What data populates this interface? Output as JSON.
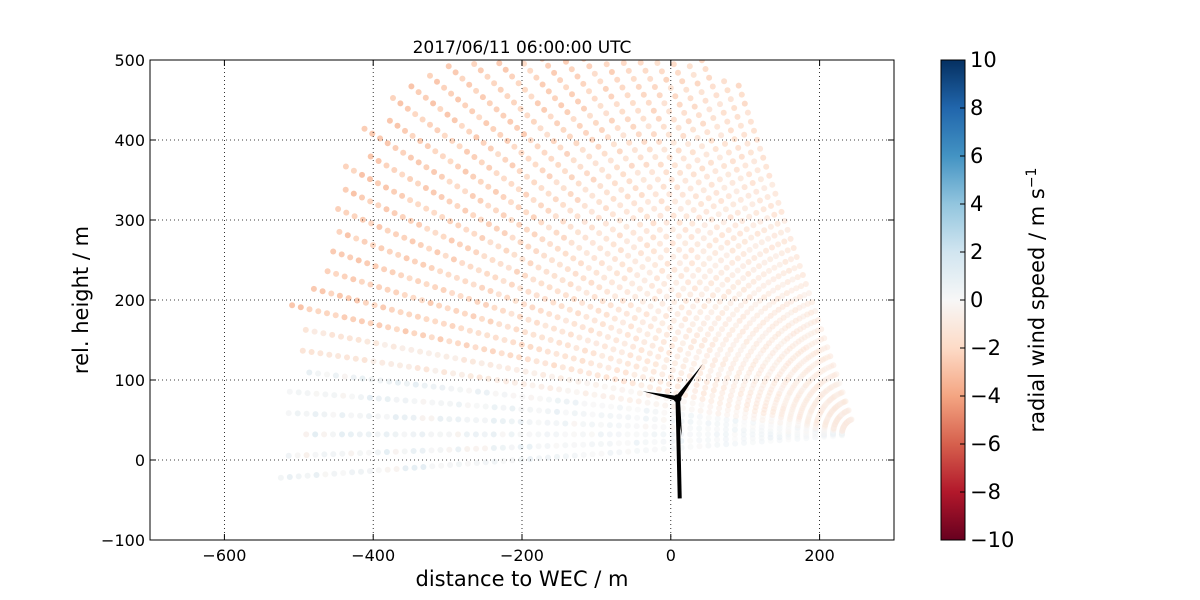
{
  "chart_data": {
    "type": "scatter",
    "title": "2017/06/11 06:00:00 UTC",
    "xlabel": "distance to WEC / m",
    "ylabel": "rel. height / m",
    "xlim": [
      -700,
      300
    ],
    "ylim": [
      -100,
      500
    ],
    "xticks": [
      -600,
      -400,
      -200,
      0,
      200
    ],
    "yticks": [
      -100,
      0,
      100,
      200,
      300,
      400,
      500
    ],
    "grid": true,
    "colorbar": {
      "label": "radial wind speed / m s",
      "label_superscript": "−1",
      "range": [
        -10,
        10
      ],
      "ticks": [
        10,
        8,
        6,
        4,
        2,
        0,
        -2,
        -4,
        -6,
        -8,
        -10
      ],
      "colormap": "RdBu",
      "colors": [
        "#67001f",
        "#b2182b",
        "#d6604d",
        "#f4a582",
        "#fddbc7",
        "#f7f7f7",
        "#d1e5f0",
        "#92c5de",
        "#4393c3",
        "#2166ac",
        "#053061"
      ]
    },
    "scan": {
      "description": "lidar RHI-type scan points relative to wind turbine",
      "azimuth_deg_range": [
        -4,
        70
      ],
      "range_m": [
        20,
        780
      ],
      "typical_radial_wind_speed": -1.5
    },
    "turbine": {
      "hub": [
        9,
        77
      ],
      "tower_base": [
        12,
        -48
      ],
      "blade_tips": [
        [
          43,
          120
        ],
        [
          -38,
          86
        ],
        [
          15,
          30
        ]
      ]
    }
  }
}
